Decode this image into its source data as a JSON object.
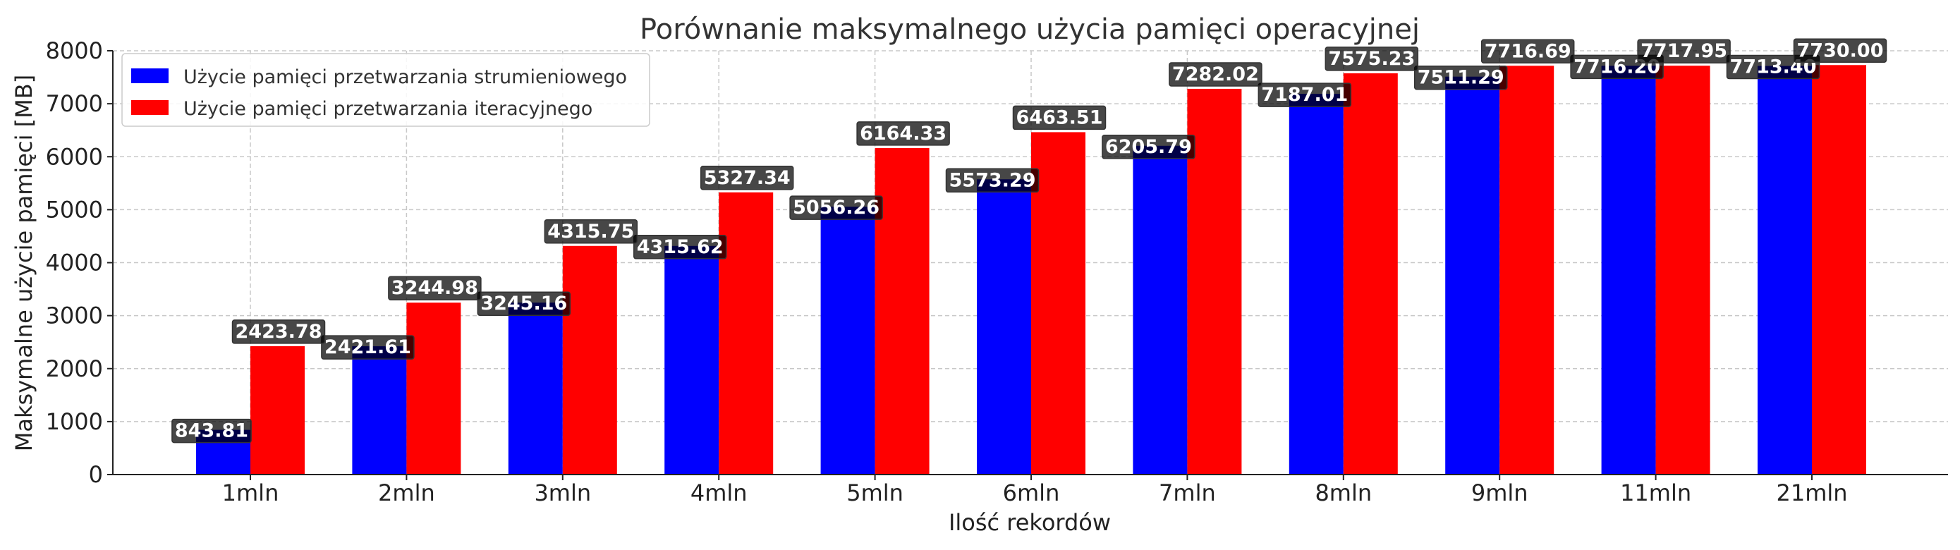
{
  "chart_data": {
    "type": "bar",
    "title": "Porównanie maksymalnego użycia pamięci operacyjnej",
    "xlabel": "Ilość rekordów",
    "ylabel": "Maksymalne użycie pamięci [MB]",
    "categories": [
      "1mln",
      "2mln",
      "3mln",
      "4mln",
      "5mln",
      "6mln",
      "7mln",
      "8mln",
      "9mln",
      "11mln",
      "21mln"
    ],
    "ylim": [
      0,
      8000
    ],
    "yticks": [
      0,
      1000,
      2000,
      3000,
      4000,
      5000,
      6000,
      7000,
      8000
    ],
    "grid": true,
    "legend_position": "top-left",
    "series": [
      {
        "name": "Użycie pamięci przetwarzania strumieniowego",
        "color": "#0000ff",
        "values": [
          843.81,
          2421.61,
          3245.16,
          4315.62,
          5056.26,
          5573.29,
          6205.79,
          7187.01,
          7511.29,
          7716.2,
          7713.4
        ],
        "value_labels": [
          "843.81",
          "2421.61",
          "3245.16",
          "4315.62",
          "5056.26",
          "5573.29",
          "6205.79",
          "7187.01",
          "7511.29",
          "7716.20",
          "7713.40"
        ]
      },
      {
        "name": "Użycie pamięci przetwarzania iteracyjnego",
        "color": "#ff0000",
        "values": [
          2423.78,
          3244.98,
          4315.75,
          5327.34,
          6164.33,
          6463.51,
          7282.02,
          7575.23,
          7716.69,
          7717.95,
          7730.0
        ],
        "value_labels": [
          "2423.78",
          "3244.98",
          "4315.75",
          "5327.34",
          "6164.33",
          "6463.51",
          "7282.02",
          "7575.23",
          "7716.69",
          "7717.95",
          "7730.00"
        ]
      }
    ]
  }
}
